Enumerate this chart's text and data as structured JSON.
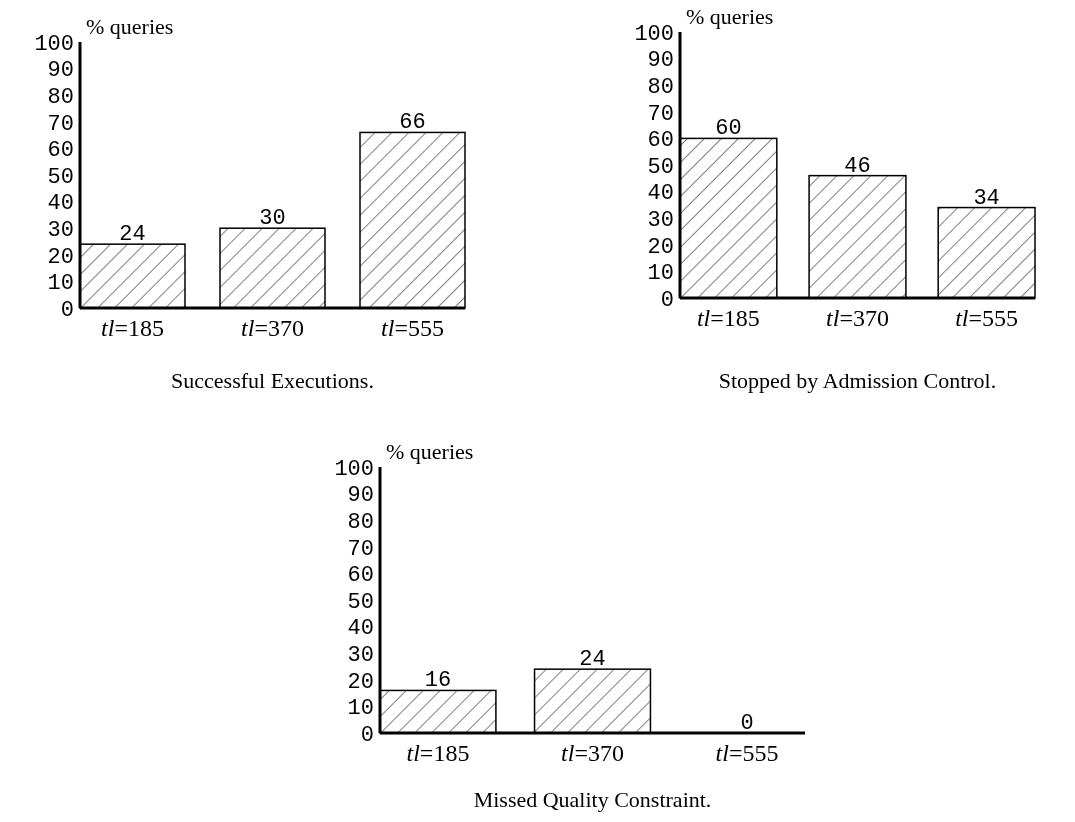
{
  "chart_data": [
    {
      "type": "bar",
      "title": "Successful Executions.",
      "ylabel": "% queries",
      "categories": [
        "tl=185",
        "tl=370",
        "tl=555"
      ],
      "values": [
        24,
        30,
        66
      ],
      "ylim": [
        0,
        100
      ],
      "yticks": [
        0,
        10,
        20,
        30,
        40,
        50,
        60,
        70,
        80,
        90,
        100
      ],
      "data_labels": true
    },
    {
      "type": "bar",
      "title": "Stopped by Admission Control.",
      "ylabel": "% queries",
      "categories": [
        "tl=185",
        "tl=370",
        "tl=555"
      ],
      "values": [
        60,
        46,
        34
      ],
      "ylim": [
        0,
        100
      ],
      "yticks": [
        0,
        10,
        20,
        30,
        40,
        50,
        60,
        70,
        80,
        90,
        100
      ],
      "data_labels": true
    },
    {
      "type": "bar",
      "title": "Missed Quality Constraint.",
      "ylabel": "% queries",
      "categories": [
        "tl=185",
        "tl=370",
        "tl=555"
      ],
      "values": [
        16,
        24,
        0
      ],
      "ylim": [
        0,
        100
      ],
      "yticks": [
        0,
        10,
        20,
        30,
        40,
        50,
        60,
        70,
        80,
        90,
        100
      ],
      "data_labels": true
    }
  ]
}
